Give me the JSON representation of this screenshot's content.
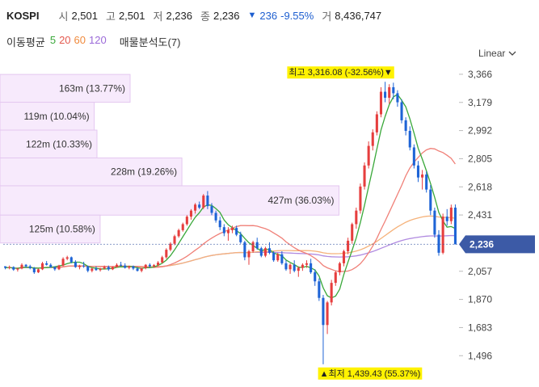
{
  "header": {
    "symbol": "KOSPI",
    "open_label": "시",
    "open": "2,501",
    "high_label": "고",
    "high": "2,501",
    "low_label": "저",
    "low": "2,236",
    "close_label": "종",
    "close": "2,236",
    "change": "236",
    "change_pct": "-9.55%",
    "volume_label": "거",
    "volume": "8,436,747"
  },
  "ma_legend": {
    "title": "이동평균",
    "periods": [
      "5",
      "20",
      "60",
      "120"
    ],
    "volume_profile_label": "매물분석도(7)"
  },
  "scale_toggle": {
    "label": "Linear"
  },
  "colors": {
    "up": "#e63e3e",
    "down": "#1e64d6",
    "ma5": "#3aa83a",
    "ma20": "#f08078",
    "ma60": "#f5b27a",
    "ma120": "#b08ae0",
    "profile_fill": "#f7eafc",
    "profile_stroke": "#e4c8f0",
    "highlight": "#fff200",
    "current_price_bg": "#3c5aa6"
  },
  "chart_data": {
    "type": "candlestick",
    "y_axis": {
      "ticks": [
        "3,366",
        "3,179",
        "2,992",
        "2,805",
        "2,618",
        "2,431",
        "2,057",
        "1,870",
        "1,683",
        "1,496"
      ],
      "ylim": [
        1390,
        3430
      ]
    },
    "current_price": {
      "value": 2236,
      "label": "2,236"
    },
    "max_annotation": {
      "value": 3316.08,
      "label": "최고 3,316.08 (-32.56%)▼"
    },
    "min_annotation": {
      "value": 1439.43,
      "label": "▲최저 1,439.43 (55.37%)"
    },
    "volume_profile": [
      {
        "label": "163m (13.77%)",
        "price_low": 3180,
        "price_high": 3365,
        "share": 0.2865
      },
      {
        "label": "119m (10.04%)",
        "price_low": 2995,
        "price_high": 3180,
        "share": 0.2075
      },
      {
        "label": "122m (10.33%)",
        "price_low": 2810,
        "price_high": 2995,
        "share": 0.2135
      },
      {
        "label": "228m (19.26%)",
        "price_low": 2625,
        "price_high": 2810,
        "share": 0.4005
      },
      {
        "label": "427m (36.03%)",
        "price_low": 2430,
        "price_high": 2625,
        "share": 0.7465
      },
      {
        "label": "125m (10.58%)",
        "price_low": 2245,
        "price_high": 2430,
        "share": 0.2205
      }
    ],
    "candles": [
      [
        2090,
        2090,
        2070,
        2080
      ],
      [
        2080,
        2095,
        2070,
        2085
      ],
      [
        2085,
        2090,
        2060,
        2068
      ],
      [
        2068,
        2080,
        2055,
        2075
      ],
      [
        2075,
        2110,
        2070,
        2100
      ],
      [
        2100,
        2105,
        2080,
        2090
      ],
      [
        2090,
        2100,
        2070,
        2078
      ],
      [
        2078,
        2085,
        2040,
        2050
      ],
      [
        2050,
        2075,
        2045,
        2070
      ],
      [
        2070,
        2120,
        2065,
        2110
      ],
      [
        2110,
        2125,
        2095,
        2100
      ],
      [
        2100,
        2110,
        2080,
        2085
      ],
      [
        2085,
        2090,
        2060,
        2070
      ],
      [
        2070,
        2100,
        2065,
        2095
      ],
      [
        2095,
        2150,
        2090,
        2140
      ],
      [
        2140,
        2160,
        2130,
        2150
      ],
      [
        2150,
        2155,
        2110,
        2118
      ],
      [
        2118,
        2130,
        2080,
        2085
      ],
      [
        2085,
        2100,
        2070,
        2095
      ],
      [
        2095,
        2120,
        2080,
        2090
      ],
      [
        2090,
        2095,
        2050,
        2060
      ],
      [
        2060,
        2080,
        2050,
        2075
      ],
      [
        2075,
        2090,
        2060,
        2065
      ],
      [
        2065,
        2080,
        2055,
        2075
      ],
      [
        2075,
        2095,
        2070,
        2085
      ],
      [
        2085,
        2095,
        2060,
        2070
      ],
      [
        2070,
        2090,
        2065,
        2085
      ],
      [
        2085,
        2110,
        2080,
        2100
      ],
      [
        2100,
        2120,
        2090,
        2095
      ],
      [
        2095,
        2110,
        2075,
        2080
      ],
      [
        2080,
        2095,
        2070,
        2090
      ],
      [
        2090,
        2095,
        2065,
        2075
      ],
      [
        2075,
        2085,
        2055,
        2060
      ],
      [
        2060,
        2080,
        2050,
        2078
      ],
      [
        2078,
        2105,
        2070,
        2100
      ],
      [
        2100,
        2110,
        2080,
        2090
      ],
      [
        2090,
        2105,
        2080,
        2098
      ],
      [
        2098,
        2125,
        2090,
        2115
      ],
      [
        2115,
        2160,
        2110,
        2150
      ],
      [
        2150,
        2210,
        2140,
        2200
      ],
      [
        2200,
        2250,
        2190,
        2240
      ],
      [
        2240,
        2300,
        2230,
        2290
      ],
      [
        2290,
        2340,
        2280,
        2330
      ],
      [
        2330,
        2380,
        2320,
        2370
      ],
      [
        2370,
        2430,
        2360,
        2420
      ],
      [
        2420,
        2470,
        2400,
        2460
      ],
      [
        2460,
        2510,
        2440,
        2500
      ],
      [
        2500,
        2520,
        2470,
        2480
      ],
      [
        2480,
        2570,
        2470,
        2560
      ],
      [
        2560,
        2590,
        2470,
        2490
      ],
      [
        2490,
        2510,
        2430,
        2445
      ],
      [
        2445,
        2460,
        2380,
        2395
      ],
      [
        2395,
        2420,
        2330,
        2350
      ],
      [
        2350,
        2370,
        2290,
        2310
      ],
      [
        2310,
        2350,
        2260,
        2330
      ],
      [
        2330,
        2360,
        2310,
        2345
      ],
      [
        2345,
        2360,
        2290,
        2300
      ],
      [
        2300,
        2320,
        2240,
        2250
      ],
      [
        2250,
        2260,
        2130,
        2150
      ],
      [
        2150,
        2200,
        2100,
        2190
      ],
      [
        2190,
        2260,
        2180,
        2250
      ],
      [
        2250,
        2280,
        2200,
        2210
      ],
      [
        2210,
        2220,
        2150,
        2160
      ],
      [
        2160,
        2220,
        2150,
        2210
      ],
      [
        2210,
        2250,
        2170,
        2180
      ],
      [
        2180,
        2190,
        2120,
        2130
      ],
      [
        2130,
        2180,
        2120,
        2170
      ],
      [
        2170,
        2190,
        2100,
        2110
      ],
      [
        2110,
        2130,
        2060,
        2070
      ],
      [
        2070,
        2110,
        2040,
        2100
      ],
      [
        2100,
        2130,
        2050,
        2060
      ],
      [
        2060,
        2090,
        2020,
        2080
      ],
      [
        2080,
        2110,
        2060,
        2100
      ],
      [
        2100,
        2130,
        2080,
        2110
      ],
      [
        2110,
        2140,
        2040,
        2050
      ],
      [
        2050,
        2070,
        1960,
        1990
      ],
      [
        1990,
        2010,
        1860,
        1880
      ],
      [
        1880,
        1900,
        1439,
        1700
      ],
      [
        1700,
        1860,
        1640,
        1850
      ],
      [
        1850,
        2000,
        1830,
        1980
      ],
      [
        1980,
        2060,
        1960,
        2050
      ],
      [
        2050,
        2120,
        2030,
        2110
      ],
      [
        2110,
        2200,
        2090,
        2190
      ],
      [
        2190,
        2280,
        2170,
        2260
      ],
      [
        2260,
        2380,
        2240,
        2370
      ],
      [
        2370,
        2480,
        2340,
        2460
      ],
      [
        2460,
        2640,
        2440,
        2620
      ],
      [
        2620,
        2780,
        2600,
        2760
      ],
      [
        2760,
        2920,
        2740,
        2890
      ],
      [
        2890,
        3000,
        2860,
        2980
      ],
      [
        2980,
        3120,
        2960,
        3100
      ],
      [
        3100,
        3280,
        3080,
        3250
      ],
      [
        3250,
        3316,
        3180,
        3210
      ],
      [
        3210,
        3300,
        3170,
        3280
      ],
      [
        3280,
        3310,
        3200,
        3240
      ],
      [
        3240,
        3260,
        3150,
        3180
      ],
      [
        3180,
        3200,
        3040,
        3060
      ],
      [
        3060,
        3080,
        2960,
        2990
      ],
      [
        2990,
        3020,
        2860,
        2880
      ],
      [
        2880,
        2900,
        2740,
        2760
      ],
      [
        2760,
        2790,
        2650,
        2680
      ],
      [
        2680,
        2730,
        2600,
        2700
      ],
      [
        2700,
        2720,
        2580,
        2600
      ],
      [
        2600,
        2630,
        2430,
        2460
      ],
      [
        2460,
        2480,
        2280,
        2300
      ],
      [
        2300,
        2330,
        2160,
        2180
      ],
      [
        2180,
        2440,
        2170,
        2420
      ],
      [
        2420,
        2470,
        2360,
        2390
      ],
      [
        2390,
        2500,
        2370,
        2480
      ],
      [
        2480,
        2501,
        2236,
        2236
      ]
    ]
  }
}
